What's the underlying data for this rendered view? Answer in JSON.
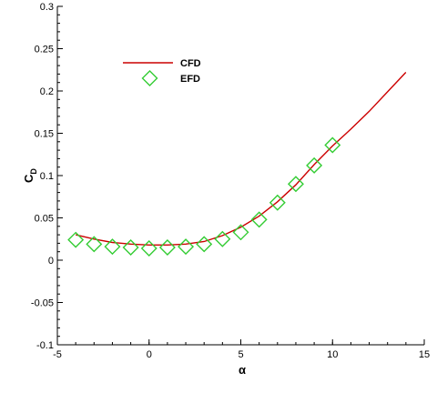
{
  "chart_data": {
    "type": "line",
    "title": "",
    "xlabel": "α",
    "ylabel": "C",
    "ylabel_subscript": "D",
    "xlim": [
      -5,
      15
    ],
    "ylim": [
      -0.1,
      0.3
    ],
    "x_ticks": [
      -5,
      0,
      5,
      10,
      15
    ],
    "x_tick_labels": [
      "-5",
      "0",
      "5",
      "10",
      "15"
    ],
    "y_ticks": [
      -0.1,
      -0.05,
      0,
      0.05,
      0.1,
      0.15,
      0.2,
      0.25,
      0.3
    ],
    "y_tick_labels": [
      "-0.1",
      "-0.05",
      "0",
      "0.05",
      "0.1",
      "0.15",
      "0.2",
      "0.25",
      "0.3"
    ],
    "x_minor_step": 1,
    "y_minor_step": 0.01,
    "grid": false,
    "legend_position": "top-left",
    "series": [
      {
        "name": "CFD",
        "style": "line",
        "color": "#cc0000",
        "x": [
          -4,
          -3,
          -2,
          -1,
          0,
          1,
          2,
          3,
          4,
          5,
          6,
          7,
          8,
          9,
          10,
          11,
          12,
          13,
          14
        ],
        "y": [
          0.03,
          0.025,
          0.021,
          0.019,
          0.018,
          0.018,
          0.019,
          0.022,
          0.029,
          0.039,
          0.052,
          0.069,
          0.089,
          0.113,
          0.135,
          0.155,
          0.176,
          0.199,
          0.222
        ]
      },
      {
        "name": "EFD",
        "style": "marker",
        "marker": "diamond",
        "color": "#33cc33",
        "x": [
          -4,
          -3,
          -2,
          -1,
          0,
          1,
          2,
          3,
          4,
          5,
          6,
          7,
          8,
          9,
          10
        ],
        "y": [
          0.024,
          0.019,
          0.016,
          0.015,
          0.014,
          0.015,
          0.016,
          0.019,
          0.025,
          0.033,
          0.048,
          0.068,
          0.09,
          0.112,
          0.136
        ]
      }
    ]
  }
}
